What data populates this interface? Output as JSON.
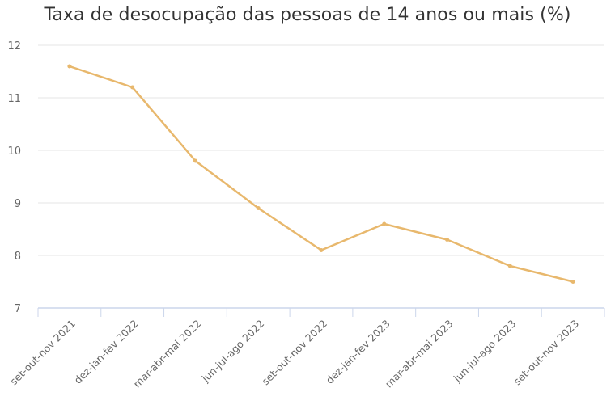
{
  "chart_data": {
    "type": "line",
    "title": "Taxa de desocupação das pessoas de 14 anos ou mais (%)",
    "xlabel": "",
    "ylabel": "",
    "ylim": [
      7,
      12
    ],
    "yticks": [
      7,
      8,
      9,
      10,
      11,
      12
    ],
    "grid": true,
    "legend": null,
    "categories": [
      "set-out-nov 2021",
      "dez-jan-fev 2022",
      "mar-abr-mai 2022",
      "jun-jul-ago 2022",
      "set-out-nov 2022",
      "dez-jan-fev 2023",
      "mar-abr-mai 2023",
      "jun-jul-ago 2023",
      "set-out-nov 2023"
    ],
    "series": [
      {
        "name": "Taxa de desocupação",
        "color": "#E8B86D",
        "values": [
          11.6,
          11.2,
          9.8,
          8.9,
          8.1,
          8.6,
          8.3,
          7.8,
          7.5
        ]
      }
    ]
  },
  "colors": {
    "line": "#E8B86D",
    "grid": "#E6E6E6",
    "axis": "#CCD6EB",
    "text": "#666666",
    "title": "#333333"
  }
}
